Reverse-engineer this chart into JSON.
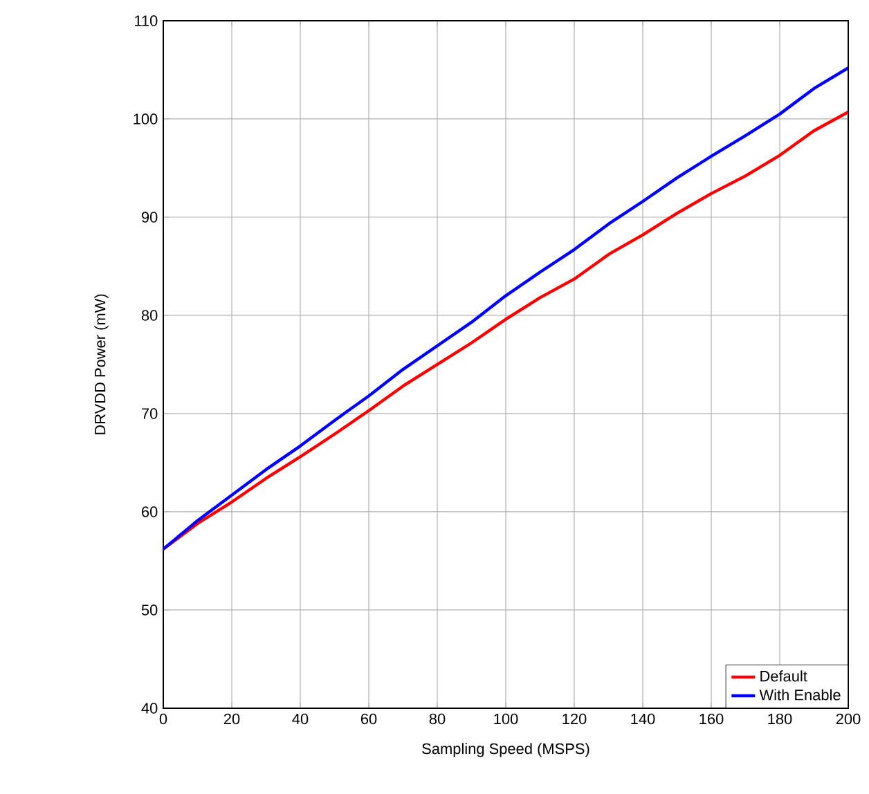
{
  "chart_data": {
    "type": "line",
    "xlabel": "Sampling Speed (MSPS)",
    "ylabel": "DRVDD Power (mW)",
    "xlim": [
      0,
      200
    ],
    "ylim": [
      40,
      110
    ],
    "xticks": [
      0,
      20,
      40,
      60,
      80,
      100,
      120,
      140,
      160,
      180,
      200
    ],
    "yticks": [
      40,
      50,
      60,
      70,
      80,
      90,
      100,
      110
    ],
    "x": [
      0,
      10,
      20,
      30,
      40,
      50,
      60,
      70,
      80,
      90,
      100,
      110,
      120,
      130,
      140,
      150,
      160,
      170,
      180,
      190,
      200
    ],
    "grid": true,
    "legend": "bottom right",
    "line_style": "solid",
    "marker": "none",
    "series": [
      {
        "name": "Default",
        "color": "#ff0000",
        "values": [
          56.2,
          58.8,
          61.0,
          63.4,
          65.6,
          67.9,
          70.3,
          72.8,
          75.0,
          77.2,
          79.6,
          81.8,
          83.7,
          86.2,
          88.2,
          90.4,
          92.4,
          94.2,
          96.3,
          98.8,
          100.7
        ]
      },
      {
        "name": "With Enable",
        "color": "#0000ff",
        "values": [
          56.2,
          59.1,
          61.7,
          64.3,
          66.7,
          69.3,
          71.8,
          74.5,
          76.9,
          79.3,
          82.0,
          84.4,
          86.7,
          89.3,
          91.6,
          94.0,
          96.2,
          98.3,
          100.5,
          103.1,
          105.2
        ]
      }
    ]
  }
}
